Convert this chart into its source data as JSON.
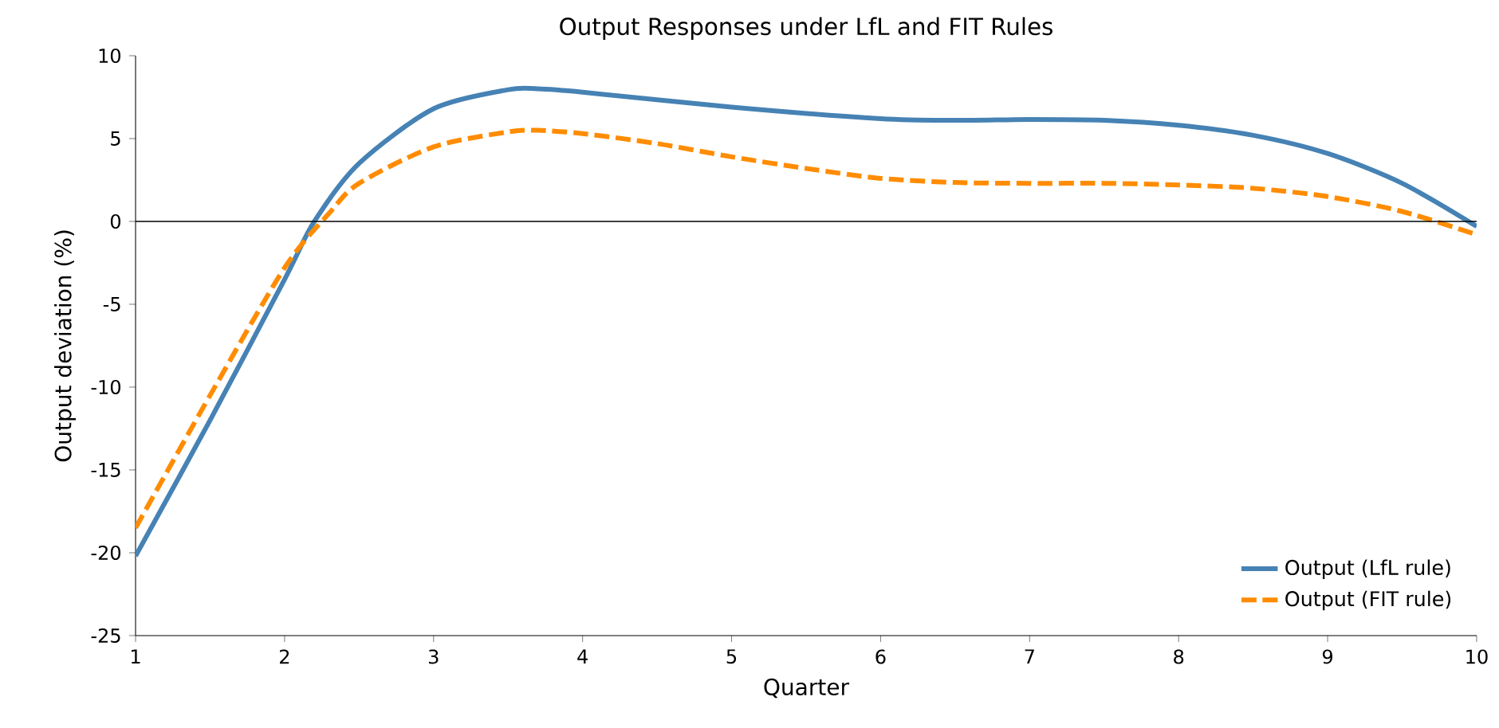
{
  "chart_data": {
    "type": "line",
    "title": "Output Responses under LfL and FIT Rules",
    "xlabel": "Quarter",
    "ylabel": "Output deviation (%)",
    "series": [
      {
        "name": "Output (LfL rule)",
        "color": "#4682b4",
        "line_style": "solid",
        "x": [
          1,
          1.5,
          2,
          2.2,
          2.5,
          3,
          3.5,
          3.7,
          4,
          5,
          6,
          6.5,
          7,
          7.5,
          8,
          8.5,
          9,
          9.5,
          10
        ],
        "values": [
          -20.2,
          -12,
          -3.5,
          0,
          3.5,
          6.8,
          7.95,
          8.0,
          7.8,
          6.9,
          6.2,
          6.1,
          6.15,
          6.1,
          5.8,
          5.2,
          4.1,
          2.3,
          -0.3
        ]
      },
      {
        "name": "Output (FIT rule)",
        "color": "#ff8c00",
        "line_style": "dashed",
        "x": [
          1,
          1.5,
          2,
          2.3,
          2.5,
          3,
          3.5,
          3.7,
          4,
          4.5,
          5,
          5.5,
          6,
          6.5,
          7,
          7.5,
          8,
          8.5,
          9,
          9.5,
          10
        ],
        "values": [
          -18.5,
          -10.5,
          -2.8,
          0.5,
          2.3,
          4.5,
          5.4,
          5.5,
          5.3,
          4.7,
          3.9,
          3.2,
          2.6,
          2.35,
          2.3,
          2.3,
          2.2,
          2.0,
          1.5,
          0.6,
          -0.8
        ]
      }
    ],
    "xlim": [
      1,
      10
    ],
    "ylim": [
      -25,
      10
    ],
    "xticks": [
      1,
      2,
      3,
      4,
      5,
      6,
      7,
      8,
      9,
      10
    ],
    "yticks": [
      -25,
      -20,
      -15,
      -10,
      -5,
      0,
      5,
      10
    ],
    "ref_lines": [
      {
        "axis": "y",
        "value": 0,
        "color": "#000000"
      }
    ],
    "grid": false,
    "legend": "bottom right"
  }
}
